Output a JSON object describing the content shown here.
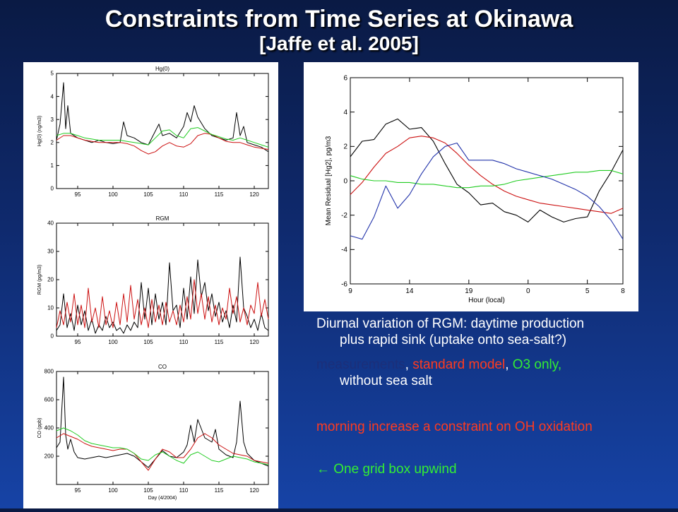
{
  "slide": {
    "title_line1": "Constraints from Time Series at Okinawa",
    "title_line2": "[Jaffe et al. 2005]",
    "caption1_line1": "Diurnal variation of RGM: daytime production",
    "caption1_line2": "plus rapid sink (uptake onto sea-salt?)",
    "legend_measurements": "measurements",
    "legend_sep1": ", ",
    "legend_standard": "standard model",
    "legend_sep2": ", ",
    "legend_o3": "O3 only,",
    "legend_line2": "without sea salt",
    "caption3": "morning increase a constraint on OH oxidation",
    "caption4": "← One grid box upwind"
  },
  "colors": {
    "measurements": "#000000",
    "standard_model": "#cc1111",
    "o3_only": "#22cc22",
    "no_sea_salt": "#2233aa"
  },
  "chart_data": [
    {
      "type": "line",
      "title": "Hg(0)",
      "xlabel": "",
      "ylabel": "Hg(0) (ng/m3)",
      "xlim": [
        92,
        122
      ],
      "ylim": [
        0,
        5
      ],
      "xticks": [
        95,
        100,
        105,
        110,
        115,
        120
      ],
      "yticks": [
        0,
        1,
        2,
        3,
        4,
        5
      ],
      "series": [
        {
          "color": "#000000",
          "x": [
            92,
            92.5,
            93,
            93.3,
            93.6,
            94,
            95,
            96,
            97,
            98,
            99,
            100,
            101,
            101.5,
            102,
            103,
            104,
            105,
            106,
            106.5,
            107,
            108,
            109,
            110,
            110.5,
            111,
            111.5,
            112,
            113,
            114,
            115,
            116,
            117,
            117.5,
            118,
            118.5,
            119,
            120,
            121,
            122
          ],
          "y": [
            2.1,
            2.8,
            4.6,
            2.6,
            3.6,
            2.4,
            2.2,
            2.1,
            2.0,
            2.1,
            2.0,
            1.95,
            2.0,
            2.9,
            2.3,
            2.2,
            2.0,
            1.9,
            2.5,
            2.8,
            2.3,
            2.4,
            2.2,
            2.7,
            3.3,
            2.9,
            3.6,
            3.1,
            2.6,
            2.3,
            2.2,
            2.1,
            2.2,
            3.3,
            2.3,
            2.7,
            2.0,
            1.9,
            1.8,
            1.6
          ]
        },
        {
          "color": "#cc1111",
          "x": [
            92,
            93,
            94,
            95,
            96,
            97,
            98,
            99,
            100,
            101,
            102,
            103,
            104,
            105,
            106,
            107,
            108,
            109,
            110,
            111,
            112,
            113,
            114,
            115,
            116,
            117,
            118,
            119,
            120,
            121,
            122
          ],
          "y": [
            2.1,
            2.3,
            2.3,
            2.2,
            2.1,
            2.05,
            2.0,
            2.0,
            2.0,
            2.0,
            1.95,
            1.85,
            1.65,
            1.5,
            1.6,
            1.85,
            2.0,
            1.85,
            1.8,
            1.95,
            2.3,
            2.4,
            2.35,
            2.2,
            2.05,
            2.0,
            2.0,
            1.9,
            1.8,
            1.75,
            1.7
          ]
        },
        {
          "color": "#22cc22",
          "x": [
            92,
            93,
            94,
            95,
            96,
            97,
            98,
            99,
            100,
            101,
            102,
            103,
            104,
            105,
            106,
            107,
            108,
            109,
            110,
            111,
            112,
            113,
            114,
            115,
            116,
            117,
            118,
            119,
            120,
            121,
            122
          ],
          "y": [
            2.3,
            2.4,
            2.4,
            2.3,
            2.2,
            2.15,
            2.1,
            2.1,
            2.1,
            2.1,
            2.05,
            2.0,
            1.95,
            1.9,
            2.2,
            2.5,
            2.55,
            2.3,
            2.2,
            2.6,
            2.65,
            2.5,
            2.35,
            2.25,
            2.15,
            2.1,
            2.2,
            2.1,
            2.0,
            1.9,
            1.8
          ]
        }
      ]
    },
    {
      "type": "line",
      "title": "RGM",
      "xlabel": "",
      "ylabel": "RGM (pg/m3)",
      "xlim": [
        92,
        122
      ],
      "ylim": [
        0,
        40
      ],
      "xticks": [
        95,
        100,
        105,
        110,
        115,
        120
      ],
      "yticks": [
        0,
        10,
        20,
        30,
        40
      ],
      "series": [
        {
          "color": "#000000",
          "x": [
            92,
            92.5,
            93,
            93.5,
            94,
            94.5,
            95,
            95.5,
            96,
            96.5,
            97,
            97.5,
            98,
            98.5,
            99,
            99.5,
            100,
            100.5,
            101,
            101.5,
            102,
            102.5,
            103,
            103.5,
            104,
            104.5,
            105,
            105.5,
            106,
            106.5,
            107,
            107.5,
            108,
            108.5,
            109,
            109.5,
            110,
            110.5,
            111,
            111.5,
            112,
            112.5,
            113,
            113.5,
            114,
            114.5,
            115,
            115.5,
            116,
            116.5,
            117,
            117.5,
            118,
            118.5,
            119,
            119.5,
            120,
            120.5,
            121,
            121.5,
            122
          ],
          "y": [
            2,
            4,
            15,
            3,
            8,
            2,
            11,
            4,
            9,
            2,
            6,
            1,
            4,
            2,
            7,
            3,
            5,
            2,
            3,
            1,
            4,
            2,
            5,
            3,
            19,
            6,
            17,
            4,
            15,
            6,
            12,
            4,
            26,
            9,
            11,
            3,
            17,
            6,
            21,
            8,
            27,
            14,
            19,
            9,
            15,
            7,
            12,
            5,
            9,
            3,
            11,
            5,
            28,
            10,
            7,
            3,
            6,
            2,
            8,
            3,
            2
          ]
        },
        {
          "color": "#cc1111",
          "x": [
            92,
            92.5,
            93,
            93.5,
            94,
            94.5,
            95,
            95.5,
            96,
            96.5,
            97,
            97.5,
            98,
            98.5,
            99,
            99.5,
            100,
            100.5,
            101,
            101.5,
            102,
            102.5,
            103,
            103.5,
            104,
            104.5,
            105,
            105.5,
            106,
            106.5,
            107,
            107.5,
            108,
            108.5,
            109,
            109.5,
            110,
            110.5,
            111,
            111.5,
            112,
            112.5,
            113,
            113.5,
            114,
            114.5,
            115,
            115.5,
            116,
            116.5,
            117,
            117.5,
            118,
            118.5,
            119,
            119.5,
            120,
            120.5,
            121,
            121.5,
            122
          ],
          "y": [
            3,
            9,
            4,
            12,
            5,
            15,
            4,
            11,
            3,
            17,
            5,
            10,
            3,
            14,
            4,
            9,
            3,
            12,
            4,
            15,
            5,
            18,
            6,
            13,
            4,
            10,
            3,
            13,
            5,
            11,
            4,
            12,
            5,
            9,
            4,
            11,
            5,
            14,
            6,
            20,
            8,
            15,
            6,
            14,
            5,
            11,
            4,
            10,
            6,
            17,
            8,
            14,
            5,
            10,
            4,
            11,
            8,
            19,
            7,
            13,
            6
          ]
        }
      ]
    },
    {
      "type": "line",
      "title": "CO",
      "xlabel": "Day (4/2004)",
      "ylabel": "CO (ppb)",
      "xlim": [
        92,
        122
      ],
      "ylim": [
        0,
        800
      ],
      "xticks": [
        95,
        100,
        105,
        110,
        115,
        120
      ],
      "yticks": [
        200,
        400,
        600,
        800
      ],
      "series": [
        {
          "color": "#000000",
          "x": [
            92,
            92.5,
            93,
            93.3,
            93.6,
            94,
            94.5,
            95,
            96,
            97,
            98,
            99,
            100,
            101,
            102,
            103,
            104,
            105,
            106,
            107,
            108,
            109,
            110,
            110.5,
            111,
            111.5,
            112,
            113,
            114,
            114.5,
            115,
            116,
            117,
            117.5,
            118,
            118.5,
            119,
            120,
            121,
            122
          ],
          "y": [
            260,
            300,
            760,
            350,
            250,
            320,
            230,
            190,
            180,
            190,
            200,
            190,
            200,
            210,
            220,
            200,
            160,
            120,
            180,
            240,
            200,
            190,
            230,
            280,
            420,
            300,
            460,
            330,
            300,
            390,
            250,
            210,
            190,
            300,
            590,
            300,
            220,
            170,
            150,
            130
          ]
        },
        {
          "color": "#cc1111",
          "x": [
            92,
            93,
            94,
            95,
            96,
            97,
            98,
            99,
            100,
            101,
            102,
            103,
            104,
            105,
            106,
            107,
            108,
            109,
            110,
            111,
            112,
            113,
            114,
            115,
            116,
            117,
            118,
            119,
            120,
            121,
            122
          ],
          "y": [
            330,
            360,
            340,
            320,
            290,
            270,
            260,
            250,
            240,
            250,
            250,
            220,
            160,
            100,
            180,
            250,
            230,
            190,
            190,
            250,
            330,
            360,
            330,
            280,
            250,
            220,
            210,
            200,
            170,
            160,
            150
          ]
        },
        {
          "color": "#22cc22",
          "x": [
            92,
            93,
            94,
            95,
            96,
            97,
            98,
            99,
            100,
            101,
            102,
            103,
            104,
            105,
            106,
            107,
            108,
            109,
            110,
            111,
            112,
            113,
            114,
            115,
            116,
            117,
            118,
            119,
            120,
            121,
            122
          ],
          "y": [
            380,
            400,
            380,
            350,
            310,
            290,
            280,
            270,
            260,
            260,
            250,
            220,
            180,
            170,
            210,
            230,
            200,
            170,
            150,
            210,
            230,
            200,
            170,
            160,
            180,
            200,
            190,
            180,
            160,
            150,
            140
          ]
        }
      ]
    },
    {
      "type": "line",
      "title": "",
      "xlabel": "Hour (local)",
      "ylabel": "Mean Residual [Hg2], pg/m3",
      "xlim": [
        0,
        23
      ],
      "ylim": [
        -6,
        6
      ],
      "xticks": [
        0,
        5,
        10,
        15,
        20,
        23
      ],
      "xticklabels": [
        "9",
        "14",
        "19",
        "0",
        "5",
        "8"
      ],
      "yticks": [
        -6,
        -4,
        -2,
        0,
        2,
        4,
        6
      ],
      "series": [
        {
          "color": "#000000",
          "x": [
            0,
            1,
            2,
            3,
            4,
            5,
            6,
            7,
            8,
            9,
            10,
            11,
            12,
            13,
            14,
            15,
            16,
            17,
            18,
            19,
            20,
            21,
            22,
            23
          ],
          "y": [
            1.4,
            2.3,
            2.4,
            3.3,
            3.6,
            3.0,
            3.1,
            2.3,
            1.0,
            -0.2,
            -0.7,
            -1.4,
            -1.3,
            -1.8,
            -2.0,
            -2.4,
            -1.7,
            -2.1,
            -2.4,
            -2.2,
            -2.1,
            -0.6,
            0.5,
            1.8
          ]
        },
        {
          "color": "#cc1111",
          "x": [
            0,
            1,
            2,
            3,
            4,
            5,
            6,
            7,
            8,
            9,
            10,
            11,
            12,
            13,
            14,
            15,
            16,
            17,
            18,
            19,
            20,
            21,
            22,
            23
          ],
          "y": [
            -0.8,
            -0.1,
            0.8,
            1.6,
            2.0,
            2.5,
            2.6,
            2.5,
            2.2,
            1.6,
            0.9,
            0.3,
            -0.2,
            -0.6,
            -0.9,
            -1.1,
            -1.3,
            -1.4,
            -1.5,
            -1.6,
            -1.7,
            -1.8,
            -1.9,
            -1.6
          ]
        },
        {
          "color": "#22cc22",
          "x": [
            0,
            1,
            2,
            3,
            4,
            5,
            6,
            7,
            8,
            9,
            10,
            11,
            12,
            13,
            14,
            15,
            16,
            17,
            18,
            19,
            20,
            21,
            22,
            23
          ],
          "y": [
            0.3,
            0.1,
            0.0,
            0.0,
            -0.1,
            -0.1,
            -0.2,
            -0.2,
            -0.3,
            -0.4,
            -0.4,
            -0.3,
            -0.3,
            -0.2,
            0.0,
            0.1,
            0.2,
            0.3,
            0.4,
            0.5,
            0.5,
            0.6,
            0.6,
            0.4
          ]
        },
        {
          "color": "#2233aa",
          "x": [
            0,
            1,
            2,
            3,
            4,
            5,
            6,
            7,
            8,
            9,
            10,
            11,
            12,
            13,
            14,
            15,
            16,
            17,
            18,
            19,
            20,
            21,
            22,
            23
          ],
          "y": [
            -3.2,
            -3.4,
            -2.1,
            -0.3,
            -1.6,
            -0.8,
            0.4,
            1.4,
            2.0,
            2.2,
            1.2,
            1.2,
            1.2,
            1.0,
            0.7,
            0.5,
            0.3,
            0.1,
            -0.2,
            -0.5,
            -0.9,
            -1.5,
            -2.3,
            -3.4
          ]
        }
      ]
    }
  ]
}
